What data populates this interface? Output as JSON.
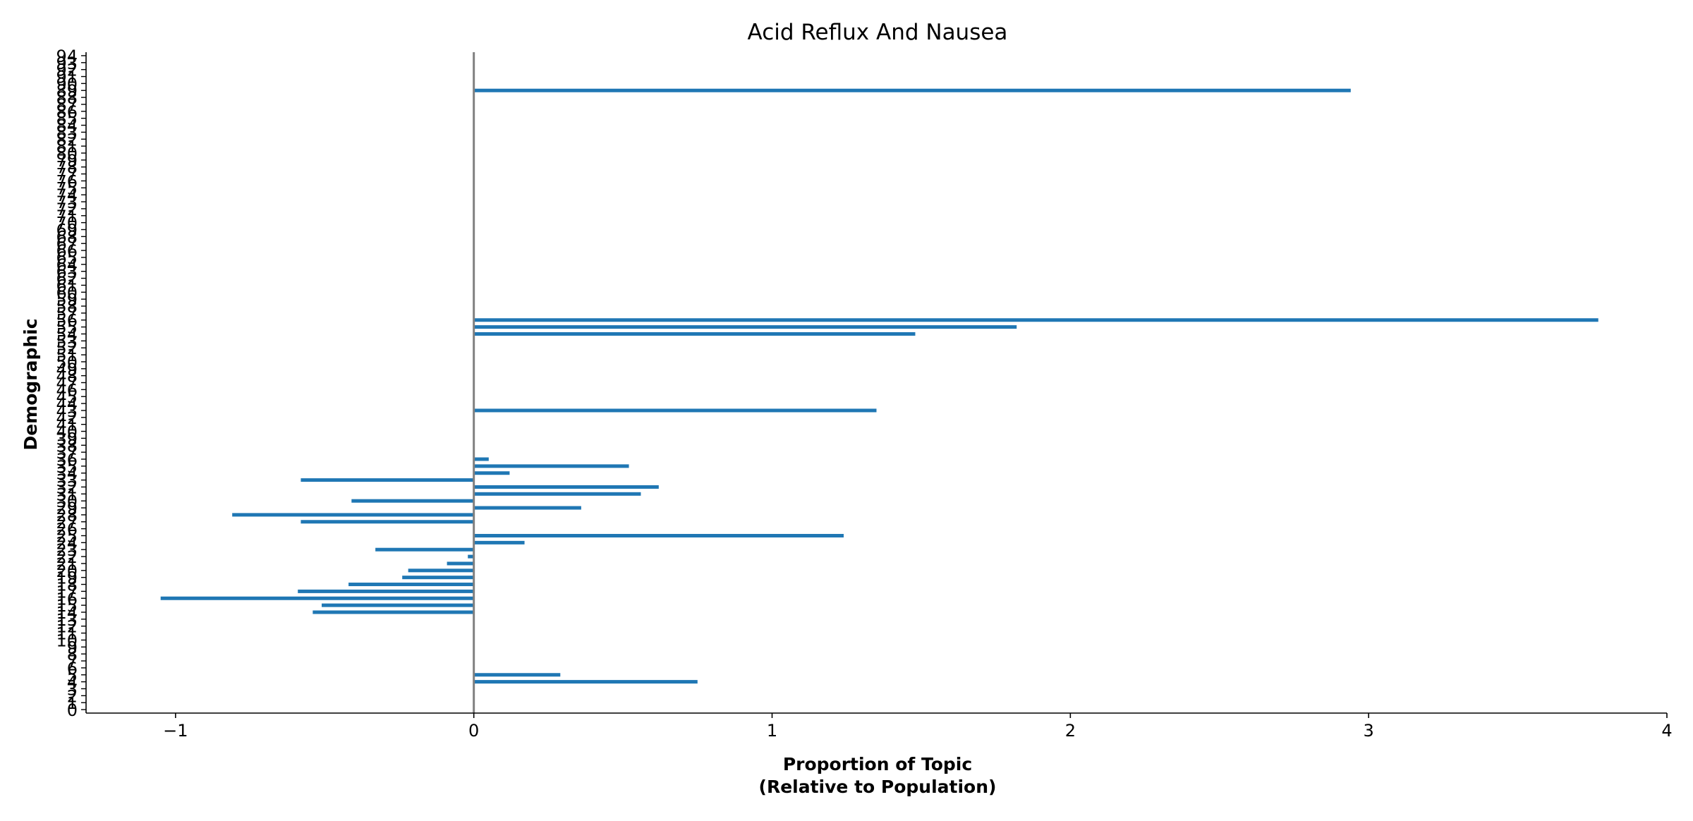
{
  "chart_data": {
    "type": "bar",
    "orientation": "horizontal",
    "title": "Acid Reflux And Nausea",
    "xlabel_line1": "Proportion of Topic",
    "xlabel_line2": "(Relative to Population)",
    "ylabel": "Demographic",
    "xlim": [
      -1.3,
      4.0
    ],
    "ylim": [
      -0.5,
      94.5
    ],
    "x_ticks": [
      -1,
      0,
      1,
      2,
      3,
      4
    ],
    "x_tick_labels": [
      "−1",
      "0",
      "1",
      "2",
      "3",
      "4"
    ],
    "y_categories": [
      0,
      1,
      2,
      3,
      4,
      5,
      6,
      7,
      8,
      9,
      10,
      11,
      12,
      13,
      14,
      15,
      16,
      17,
      18,
      19,
      20,
      21,
      22,
      23,
      24,
      25,
      26,
      27,
      28,
      29,
      30,
      31,
      32,
      33,
      34,
      35,
      36,
      37,
      38,
      39,
      40,
      41,
      42,
      43,
      44,
      45,
      46,
      47,
      48,
      49,
      50,
      51,
      52,
      53,
      54,
      55,
      56,
      57,
      58,
      59,
      60,
      61,
      62,
      63,
      64,
      65,
      66,
      67,
      68,
      69,
      70,
      71,
      72,
      73,
      74,
      75,
      76,
      77,
      78,
      79,
      80,
      81,
      82,
      83,
      84,
      85,
      86,
      87,
      88,
      89,
      90,
      91,
      92,
      93,
      94
    ],
    "values": [
      0,
      0,
      0,
      0,
      0.75,
      0.29,
      0,
      0,
      0,
      0,
      0,
      0,
      0,
      0,
      -0.54,
      -0.51,
      -1.05,
      -0.59,
      -0.42,
      -0.24,
      -0.22,
      -0.09,
      -0.02,
      -0.33,
      0.17,
      1.24,
      0,
      -0.58,
      -0.81,
      0.36,
      -0.41,
      0.56,
      0.62,
      -0.58,
      0.12,
      0.52,
      0.05,
      0,
      0,
      0,
      0,
      0,
      0,
      1.35,
      0,
      0,
      0,
      0,
      0,
      0,
      0,
      0,
      0,
      0,
      1.48,
      1.82,
      3.77,
      0,
      0,
      0,
      0,
      0,
      0,
      0,
      0,
      0,
      0,
      0,
      0,
      0,
      0,
      0,
      0,
      0,
      0,
      0,
      0,
      0,
      0,
      0,
      0,
      0,
      0,
      0,
      0,
      0,
      0,
      0,
      0,
      2.94,
      0,
      0,
      0,
      0,
      0
    ],
    "bar_color": "#1f77b4",
    "zero_line_color": "#808080",
    "grid": false
  }
}
